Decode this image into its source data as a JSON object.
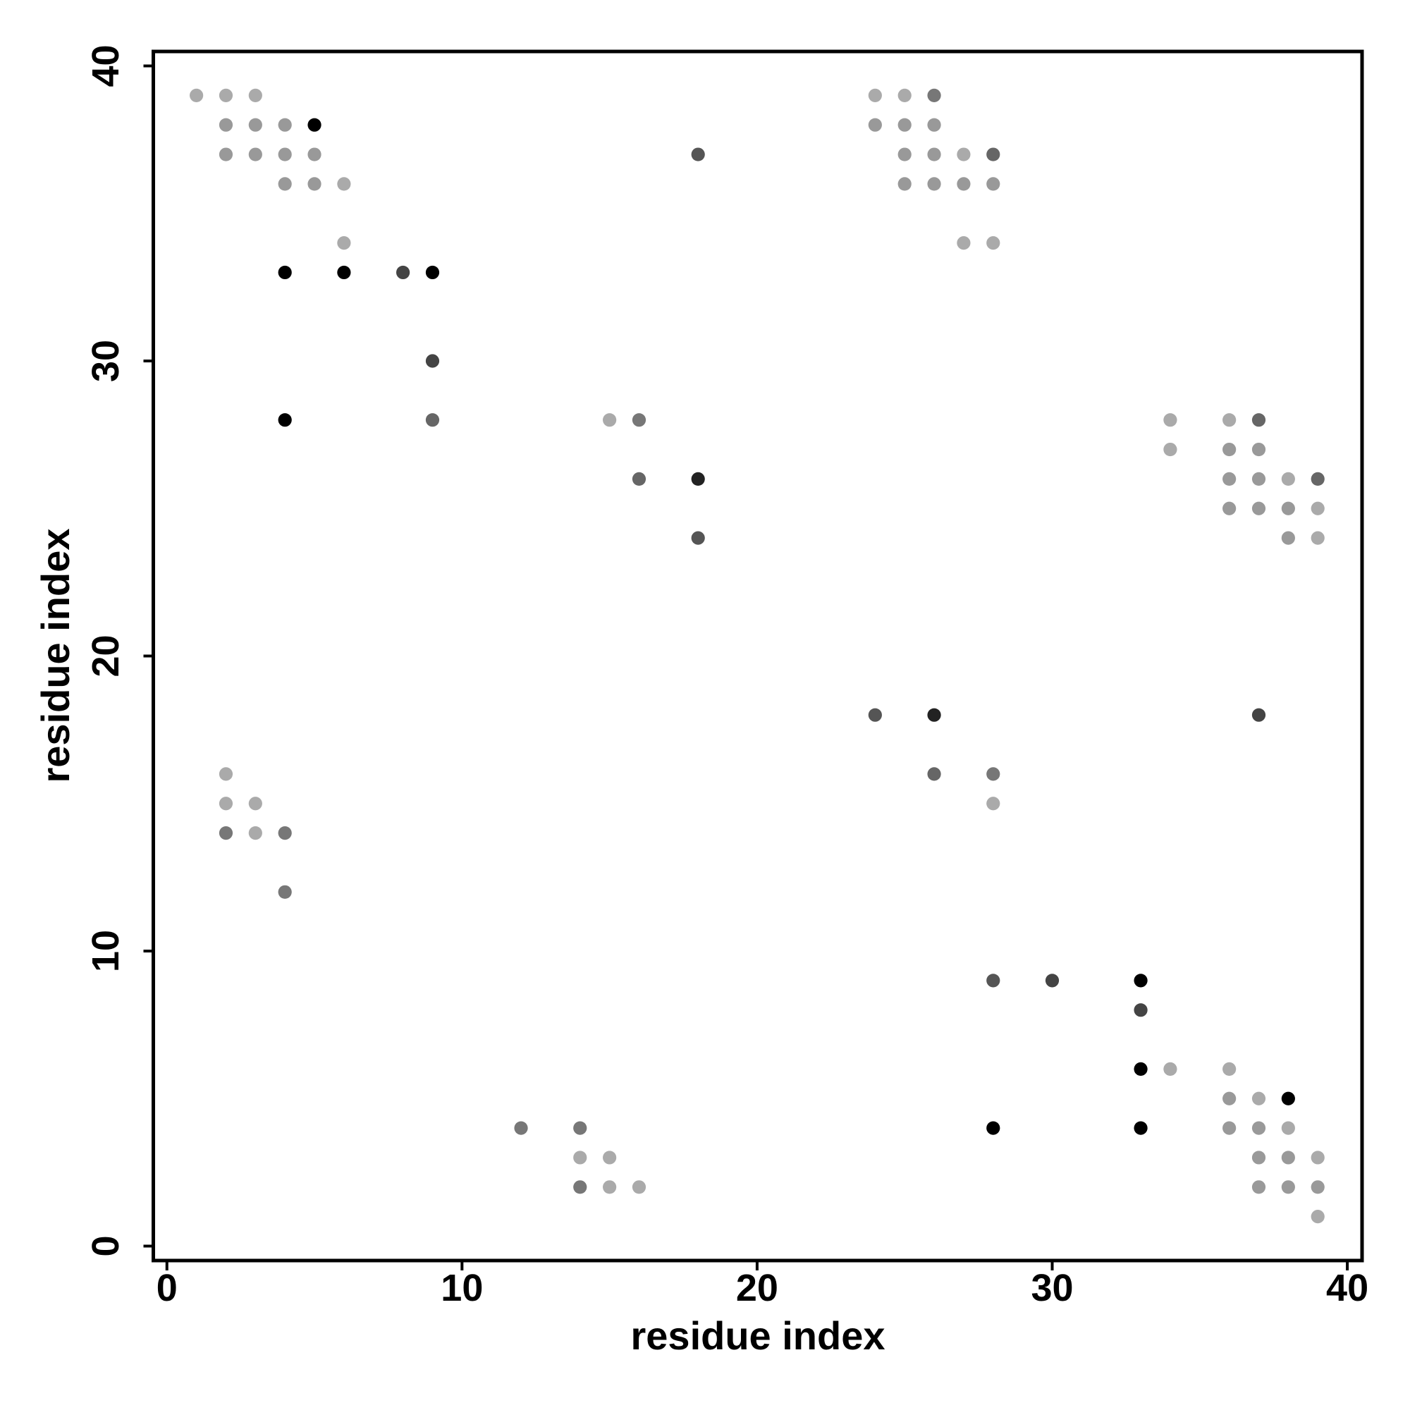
{
  "chart_data": {
    "type": "scatter",
    "x_label": "residue index",
    "y_label": "residue index",
    "xlim": [
      -0.46,
      40.5
    ],
    "ylim": [
      -0.49,
      40.49
    ],
    "xticks": [
      0,
      10,
      20,
      30,
      40
    ],
    "yticks": [
      0,
      10,
      20,
      30,
      40
    ],
    "grid": false,
    "x": [
      1,
      2,
      3,
      24,
      25,
      26,
      2,
      3,
      4,
      5,
      24,
      25,
      26,
      2,
      3,
      4,
      5,
      18,
      25,
      26,
      27,
      28,
      4,
      5,
      6,
      25,
      26,
      27,
      28,
      6,
      27,
      28,
      4,
      6,
      8,
      9,
      9,
      4,
      9,
      15,
      16,
      34,
      36,
      37,
      34,
      36,
      37,
      16,
      18,
      36,
      37,
      38,
      39,
      36,
      37,
      38,
      39,
      18,
      38,
      39,
      24,
      26,
      37,
      2,
      26,
      28,
      2,
      3,
      28,
      2,
      3,
      4,
      4,
      28,
      30,
      33,
      33,
      33,
      34,
      36,
      36,
      37,
      38,
      12,
      14,
      28,
      33,
      36,
      37,
      38,
      14,
      15,
      37,
      38,
      39,
      14,
      15,
      16,
      37,
      38,
      39,
      39
    ],
    "y": [
      39,
      39,
      39,
      39,
      39,
      39,
      38,
      38,
      38,
      38,
      38,
      38,
      38,
      37,
      37,
      37,
      37,
      37,
      37,
      37,
      37,
      37,
      36,
      36,
      36,
      36,
      36,
      36,
      36,
      34,
      34,
      34,
      33,
      33,
      33,
      33,
      30,
      28,
      28,
      28,
      28,
      28,
      28,
      28,
      27,
      27,
      27,
      26,
      26,
      26,
      26,
      26,
      26,
      25,
      25,
      25,
      25,
      24,
      24,
      24,
      18,
      18,
      18,
      16,
      16,
      16,
      15,
      15,
      15,
      14,
      14,
      14,
      12,
      9,
      9,
      9,
      8,
      6,
      6,
      6,
      5,
      5,
      5,
      4,
      4,
      4,
      4,
      4,
      4,
      4,
      3,
      3,
      3,
      3,
      3,
      2,
      2,
      2,
      2,
      2,
      2,
      1
    ],
    "colors": [
      "#aaaaaa",
      "#aaaaaa",
      "#aaaaaa",
      "#aaaaaa",
      "#aaaaaa",
      "#777777",
      "#999999",
      "#999999",
      "#999999",
      "#000000",
      "#999999",
      "#999999",
      "#999999",
      "#999999",
      "#999999",
      "#999999",
      "#999999",
      "#555555",
      "#999999",
      "#999999",
      "#aaaaaa",
      "#666666",
      "#999999",
      "#999999",
      "#aaaaaa",
      "#999999",
      "#999999",
      "#999999",
      "#999999",
      "#aaaaaa",
      "#aaaaaa",
      "#aaaaaa",
      "#000000",
      "#000000",
      "#444444",
      "#000000",
      "#444444",
      "#000000",
      "#666666",
      "#aaaaaa",
      "#777777",
      "#aaaaaa",
      "#aaaaaa",
      "#666666",
      "#aaaaaa",
      "#999999",
      "#999999",
      "#666666",
      "#222222",
      "#999999",
      "#999999",
      "#aaaaaa",
      "#666666",
      "#999999",
      "#999999",
      "#999999",
      "#aaaaaa",
      "#555555",
      "#999999",
      "#aaaaaa",
      "#555555",
      "#222222",
      "#444444",
      "#aaaaaa",
      "#666666",
      "#777777",
      "#aaaaaa",
      "#aaaaaa",
      "#aaaaaa",
      "#777777",
      "#aaaaaa",
      "#777777",
      "#777777",
      "#555555",
      "#444444",
      "#000000",
      "#444444",
      "#000000",
      "#aaaaaa",
      "#aaaaaa",
      "#999999",
      "#aaaaaa",
      "#000000",
      "#777777",
      "#777777",
      "#000000",
      "#000000",
      "#999999",
      "#999999",
      "#aaaaaa",
      "#aaaaaa",
      "#aaaaaa",
      "#999999",
      "#999999",
      "#aaaaaa",
      "#777777",
      "#aaaaaa",
      "#aaaaaa",
      "#999999",
      "#999999",
      "#999999",
      "#aaaaaa"
    ]
  }
}
